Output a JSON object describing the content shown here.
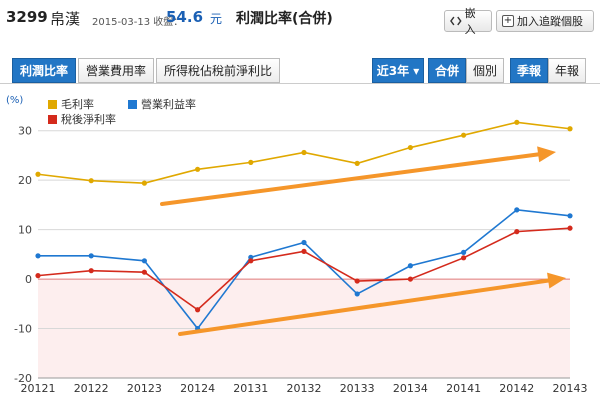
{
  "header": {
    "stock_code": "3299",
    "stock_name": "帛漢",
    "quote_date": "2015-03-13 收盤：",
    "price": "54.6",
    "price_unit": "元",
    "page_title": "利潤比率(合併)",
    "embed_label": "嵌入",
    "follow_label": "加入追蹤個股"
  },
  "tabs": [
    {
      "label": "利潤比率",
      "active": true
    },
    {
      "label": "營業費用率",
      "active": false
    },
    {
      "label": "所得稅佔稅前淨利比",
      "active": false
    }
  ],
  "controls": {
    "range_label": "近3年 ▾",
    "consolidated_label": "合併",
    "individual_label": "個別",
    "quarterly_label": "季報",
    "annual_label": "年報"
  },
  "colors": {
    "gross": "#e0a800",
    "operating": "#1f78d1",
    "net": "#d42a1c",
    "arrow": "#f5962a",
    "negative_band": "#fdeeee",
    "zero_line": "#e07a7a"
  },
  "chart_data": {
    "type": "line",
    "ylabel": "(%)",
    "ylim": [
      -20,
      35
    ],
    "yticks": [
      -20,
      -10,
      0,
      10,
      20,
      30
    ],
    "categories": [
      "20121",
      "20122",
      "20123",
      "20124",
      "20131",
      "20132",
      "20133",
      "20134",
      "20141",
      "20142",
      "20143"
    ],
    "series": [
      {
        "name": "毛利率",
        "color": "#e0a800",
        "values": [
          21.2,
          19.9,
          19.4,
          22.2,
          23.6,
          25.6,
          23.4,
          26.6,
          29.1,
          31.7,
          30.4
        ]
      },
      {
        "name": "營業利益率",
        "color": "#1f78d1",
        "values": [
          4.7,
          4.7,
          3.7,
          -10.0,
          4.4,
          7.4,
          -3.0,
          2.7,
          5.4,
          14.0,
          12.8
        ]
      },
      {
        "name": "稅後淨利率",
        "color": "#d42a1c",
        "values": [
          0.7,
          1.7,
          1.4,
          -6.2,
          3.7,
          5.6,
          -0.4,
          0.0,
          4.3,
          9.6,
          10.3
        ]
      }
    ],
    "legend_position": "top-left",
    "grid": true
  }
}
